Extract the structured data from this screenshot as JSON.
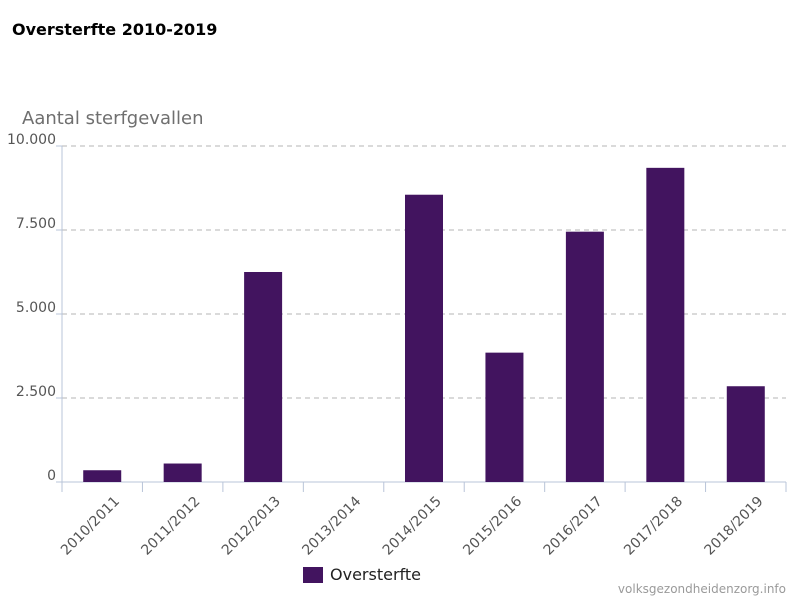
{
  "chart_data": {
    "type": "bar",
    "title": "Oversterfte 2010-2019",
    "ylabel": "Aantal sterfgevallen",
    "xlabel": "",
    "categories": [
      "2010/2011",
      "2011/2012",
      "2012/2013",
      "2013/2014",
      "2014/2015",
      "2015/2016",
      "2016/2017",
      "2017/2018",
      "2018/2019"
    ],
    "series": [
      {
        "name": "Oversterfte",
        "values": [
          350,
          550,
          6250,
          0,
          8550,
          3850,
          7450,
          9350,
          2850
        ]
      }
    ],
    "ylim": [
      0,
      10000
    ],
    "yticks": [
      0,
      2500,
      5000,
      7500,
      10000
    ],
    "ytick_labels": [
      "0",
      "2.500",
      "5.000",
      "7.500",
      "10.000"
    ],
    "grid": true,
    "legend_position": "bottom-left",
    "bar_color": "#42145f"
  },
  "source": "volksgezondheidenzorg.info"
}
